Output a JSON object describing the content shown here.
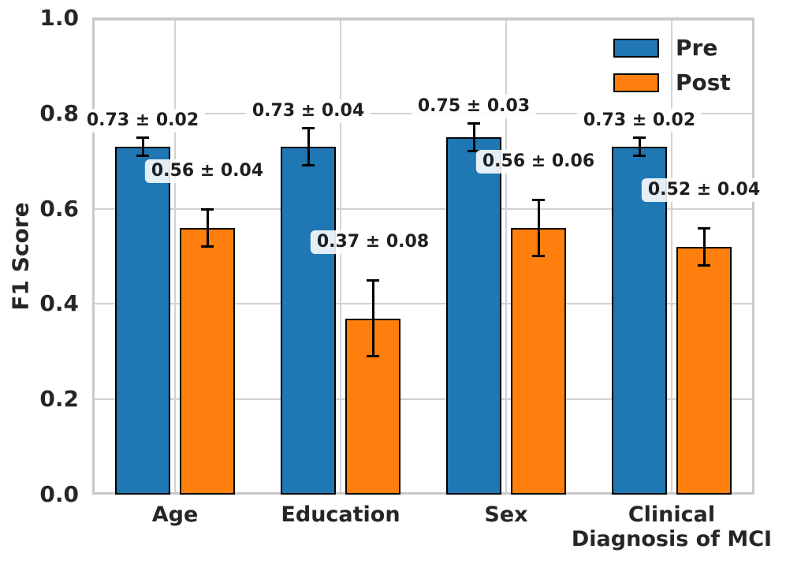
{
  "chart_data": {
    "type": "bar",
    "title": "",
    "xlabel": "",
    "ylabel": "F1 Score",
    "ylim": [
      0,
      1
    ],
    "grid": true,
    "legend_position": "upper right",
    "yticks": [
      {
        "v": 0.0,
        "label": "0.0"
      },
      {
        "v": 0.2,
        "label": "0.2"
      },
      {
        "v": 0.4,
        "label": "0.4"
      },
      {
        "v": 0.6,
        "label": "0.6"
      },
      {
        "v": 0.8,
        "label": "0.8"
      },
      {
        "v": 1.0,
        "label": "1.0"
      }
    ],
    "categories": [
      "Age",
      "Education",
      "Sex",
      "Clinical\nDiagnosis of MCI"
    ],
    "series": [
      {
        "name": "Pre",
        "color": "#1f77b4",
        "values": [
          0.73,
          0.73,
          0.75,
          0.73
        ],
        "errors": [
          0.02,
          0.04,
          0.03,
          0.02
        ],
        "value_labels": [
          "0.73 ± 0.02",
          "0.73 ± 0.04",
          "0.75 ± 0.03",
          "0.73 ± 0.02"
        ]
      },
      {
        "name": "Post",
        "color": "#ff7f0e",
        "values": [
          0.56,
          0.37,
          0.56,
          0.52
        ],
        "errors": [
          0.04,
          0.08,
          0.06,
          0.04
        ],
        "value_labels": [
          "0.56 ± 0.04",
          "0.37 ± 0.08",
          "0.56 ± 0.06",
          "0.52 ± 0.04"
        ]
      }
    ]
  },
  "legend": {
    "items": [
      {
        "label": "Pre",
        "color": "#1f77b4"
      },
      {
        "label": "Post",
        "color": "#ff7f0e"
      }
    ]
  }
}
